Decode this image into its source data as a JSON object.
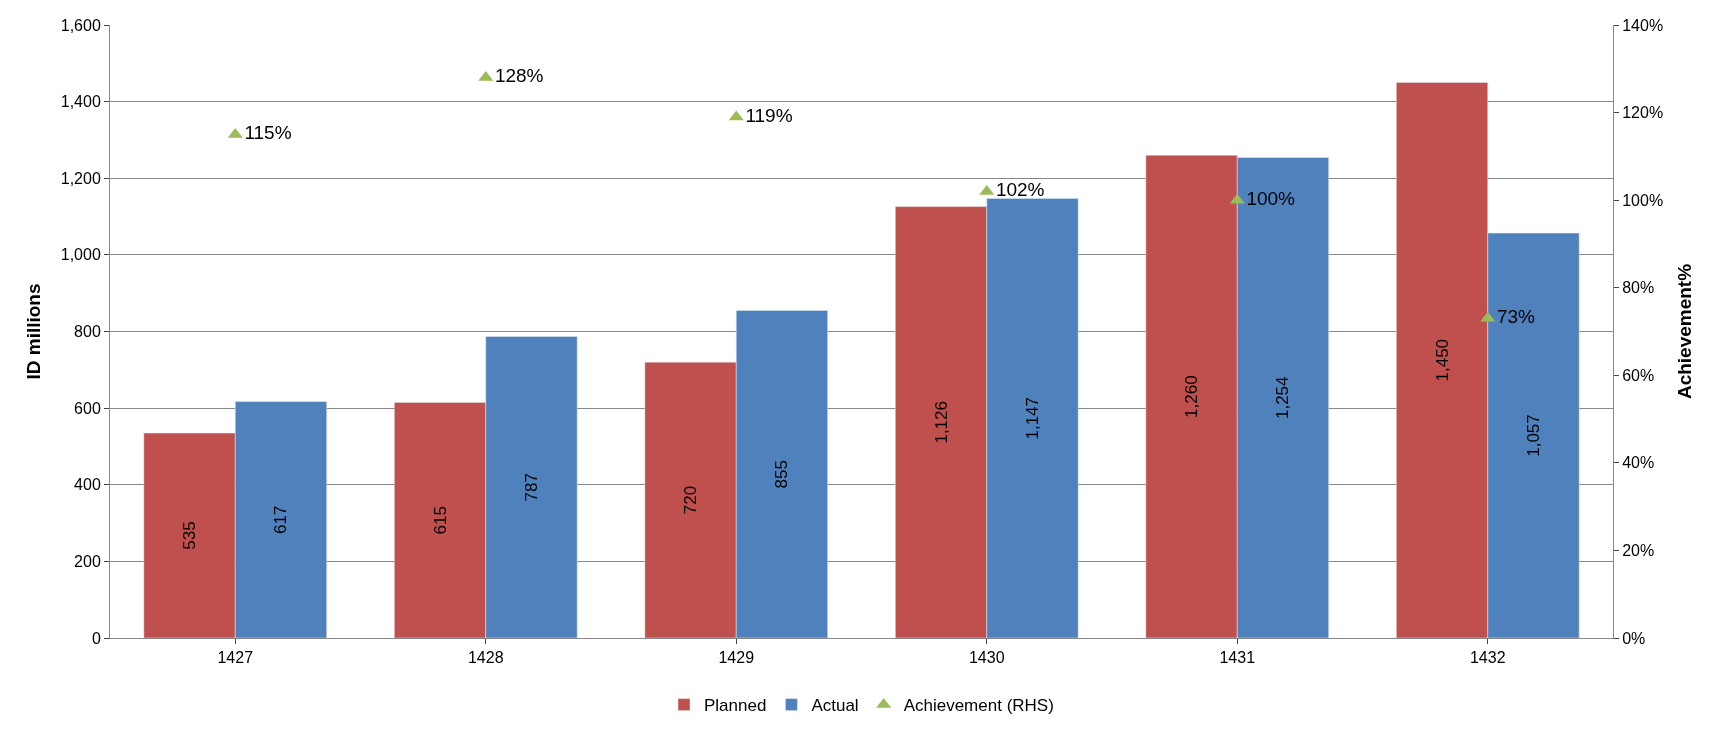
{
  "chart_data": {
    "type": "bar",
    "categories": [
      "1427",
      "1428",
      "1429",
      "1430",
      "1431",
      "1432"
    ],
    "ylabel": "ID millions",
    "y2label": "Achievement%",
    "ylim": [
      0,
      1600
    ],
    "yticks": [
      0,
      200,
      400,
      600,
      800,
      {
        "value": 1000,
        "label": "1,000"
      },
      {
        "value": 1200,
        "label": "1,200"
      },
      {
        "value": 1400,
        "label": "1,400"
      },
      {
        "value": 1600,
        "label": "1,600"
      }
    ],
    "y2lim": [
      0,
      140
    ],
    "y2ticks": [
      {
        "value": 0,
        "label": "0%"
      },
      {
        "value": 20,
        "label": "20%"
      },
      {
        "value": 40,
        "label": "40%"
      },
      {
        "value": 60,
        "label": "60%"
      },
      {
        "value": 80,
        "label": "80%"
      },
      {
        "value": 100,
        "label": "100%"
      },
      {
        "value": 120,
        "label": "120%"
      },
      {
        "value": 140,
        "label": "140%"
      }
    ],
    "series": [
      {
        "name": "Planned",
        "color": "#c0504d",
        "values": [
          535,
          615,
          720,
          1126,
          1260,
          1450
        ],
        "value_labels": [
          "535",
          "615",
          "720",
          "1,126",
          "1,260",
          "1,450"
        ]
      },
      {
        "name": "Actual",
        "color": "#4f81bd",
        "values": [
          617,
          787,
          855,
          1147,
          1254,
          1057
        ],
        "value_labels": [
          "617",
          "787",
          "855",
          "1,147",
          "1,254",
          "1,057"
        ]
      },
      {
        "name": "Achievement (RHS)",
        "type": "scatter",
        "axis": "y2",
        "marker": "triangle",
        "color": "#9bbb59",
        "values": [
          115,
          128,
          119,
          102,
          100,
          73
        ],
        "value_labels": [
          "115%",
          "128%",
          "119%",
          "102%",
          "100%",
          "73%"
        ]
      }
    ],
    "grid": "y",
    "legend": "bottom"
  }
}
